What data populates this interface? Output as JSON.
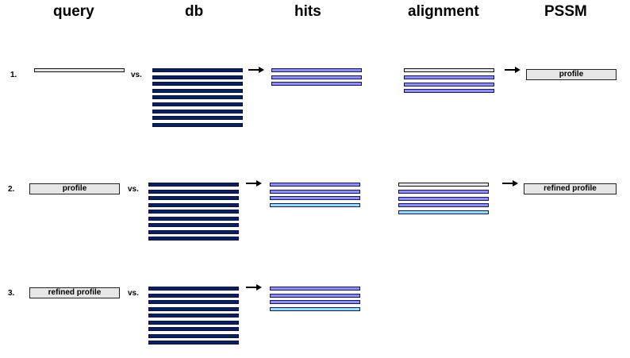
{
  "headers": {
    "query": "query",
    "db": "db",
    "hits": "hits",
    "alignment": "alignment",
    "pssm": "PSSM"
  },
  "rows": [
    {
      "number": "1.",
      "query_label": "",
      "vs": "vs.",
      "pssm_label": "profile"
    },
    {
      "number": "2.",
      "query_label": "profile",
      "vs": "vs.",
      "pssm_label": "refined profile"
    },
    {
      "number": "3.",
      "query_label": "refined profile",
      "vs": "vs."
    }
  ],
  "colors": {
    "db_bar": "#0c1f5c",
    "hit_bar": "#8f8fee",
    "new_hit_bar": "#8fe0f0",
    "query_fill": "#e6e6e6"
  }
}
